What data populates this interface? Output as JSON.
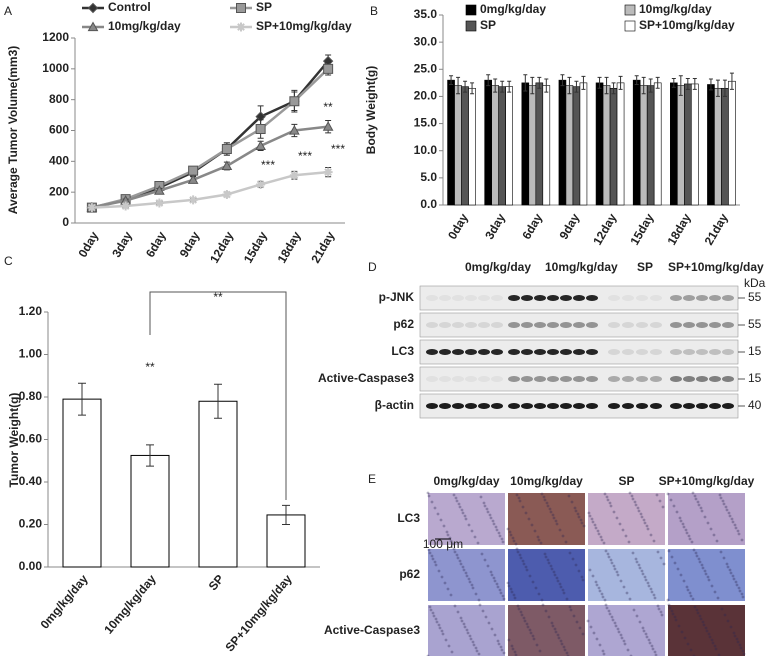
{
  "panel_labels": [
    "A",
    "B",
    "C",
    "D",
    "E"
  ],
  "chart_data": [
    {
      "type": "line",
      "y_label": "Average Tumor Volume(mm3)",
      "categories": [
        "0day",
        "3day",
        "6day",
        "9day",
        "12day",
        "15day",
        "18day",
        "21day"
      ],
      "series": [
        {
          "name": "Control",
          "color": "#333333",
          "marker": "diamond",
          "values": [
            100,
            150,
            230,
            330,
            480,
            690,
            790,
            1050
          ],
          "errors": [
            10,
            15,
            20,
            25,
            40,
            70,
            60,
            40
          ]
        },
        {
          "name": "SP",
          "color": "#999999",
          "marker": "square",
          "values": [
            100,
            155,
            240,
            340,
            480,
            610,
            790,
            1000
          ],
          "errors": [
            10,
            15,
            20,
            25,
            40,
            60,
            70,
            40
          ]
        },
        {
          "name": "10mg/kg/day",
          "color": "#888888",
          "marker": "triangle",
          "values": [
            100,
            145,
            210,
            280,
            370,
            500,
            600,
            625
          ],
          "errors": [
            10,
            10,
            15,
            20,
            25,
            30,
            40,
            40
          ]
        },
        {
          "name": "SP+10mg/kg/day",
          "color": "#c8c8c8",
          "marker": "star",
          "values": [
            100,
            110,
            130,
            150,
            185,
            250,
            310,
            330
          ],
          "errors": [
            5,
            8,
            10,
            10,
            15,
            20,
            25,
            30
          ]
        }
      ],
      "ylim": [
        0,
        1200
      ],
      "yticks": [
        0,
        200,
        400,
        600,
        800,
        1000,
        1200
      ],
      "annotations": [
        "**",
        "***",
        "***",
        "***"
      ]
    },
    {
      "type": "bar",
      "y_label": "Body Weight(g)",
      "categories": [
        "0day",
        "3day",
        "6day",
        "9day",
        "12day",
        "15day",
        "18day",
        "21day"
      ],
      "series": [
        {
          "name": "0mg/kg/day",
          "color": "#000000",
          "values": [
            23,
            23,
            22.5,
            23,
            22.5,
            23,
            22.5,
            22.2
          ],
          "errors": [
            0.8,
            1,
            1.5,
            1,
            1,
            0.8,
            0.8,
            1
          ]
        },
        {
          "name": "10mg/kg/day",
          "color": "#bbbbbb",
          "values": [
            22,
            22,
            22,
            22,
            22,
            22,
            22,
            21.5
          ],
          "errors": [
            1.5,
            1.2,
            1.5,
            1.5,
            1.5,
            1.5,
            1.8,
            1.5
          ]
        },
        {
          "name": "SP",
          "color": "#555555",
          "values": [
            21.8,
            21.8,
            22.5,
            21.8,
            21.5,
            22,
            22.3,
            21.5
          ],
          "errors": [
            1,
            1,
            1,
            1,
            1,
            1.2,
            1,
            1.5
          ]
        },
        {
          "name": "SP+10mg/kg/day",
          "color": "#ffffff",
          "values": [
            21.5,
            21.8,
            22,
            22.5,
            22.5,
            22.5,
            22.3,
            22.8
          ],
          "errors": [
            1,
            1,
            1.2,
            1.2,
            1.2,
            1,
            1,
            1.5
          ]
        }
      ],
      "ylim": [
        0,
        35
      ],
      "yticks": [
        {
          "value": 0,
          "label": "0.0"
        },
        {
          "value": 5,
          "label": "5.0"
        },
        {
          "value": 10,
          "label": "10.0"
        },
        {
          "value": 15,
          "label": "15.0"
        },
        {
          "value": 20,
          "label": "20.0"
        },
        {
          "value": 25,
          "label": "25.0"
        },
        {
          "value": 30,
          "label": "30.0"
        },
        {
          "value": 35,
          "label": "35.0"
        }
      ]
    },
    {
      "type": "bar",
      "y_label": "Tumor Weight(g)",
      "categories": [
        "0mg/kg/day",
        "10mg/kg/day",
        "SP",
        "SP+10mg/kg/day"
      ],
      "values": [
        0.79,
        0.525,
        0.78,
        0.245
      ],
      "errors": [
        0.075,
        0.05,
        0.08,
        0.045
      ],
      "color": "#ffffff",
      "ylim": [
        0,
        1.2
      ],
      "yticks": [
        {
          "value": 0,
          "label": "0.00"
        },
        {
          "value": 0.2,
          "label": "0.20"
        },
        {
          "value": 0.4,
          "label": "0.40"
        },
        {
          "value": 0.6,
          "label": "0.60"
        },
        {
          "value": 0.8,
          "label": "0.80"
        },
        {
          "value": 1,
          "label": "1.00"
        },
        {
          "value": 1.2,
          "label": "1.20"
        }
      ],
      "annotations": [
        "**",
        "**"
      ]
    }
  ],
  "blot": {
    "groups": [
      "0mg/kg/day",
      "10mg/kg/day",
      "SP",
      "SP+10mg/kg/day"
    ],
    "unit": "kDa",
    "rows": [
      {
        "label": "p-JNK",
        "size": "55"
      },
      {
        "label": "p62",
        "size": "55"
      },
      {
        "label": "LC3",
        "size": "15"
      },
      {
        "label": "Active-Caspase3",
        "size": "15"
      },
      {
        "label": "β-actin",
        "size": "40"
      }
    ]
  },
  "ihc": {
    "groups": [
      "0mg/kg/day",
      "10mg/kg/day",
      "SP",
      "SP+10mg/kg/day"
    ],
    "rows": [
      "LC3",
      "p62",
      "Active-Caspase3"
    ],
    "scale_bar": "100 μm"
  }
}
